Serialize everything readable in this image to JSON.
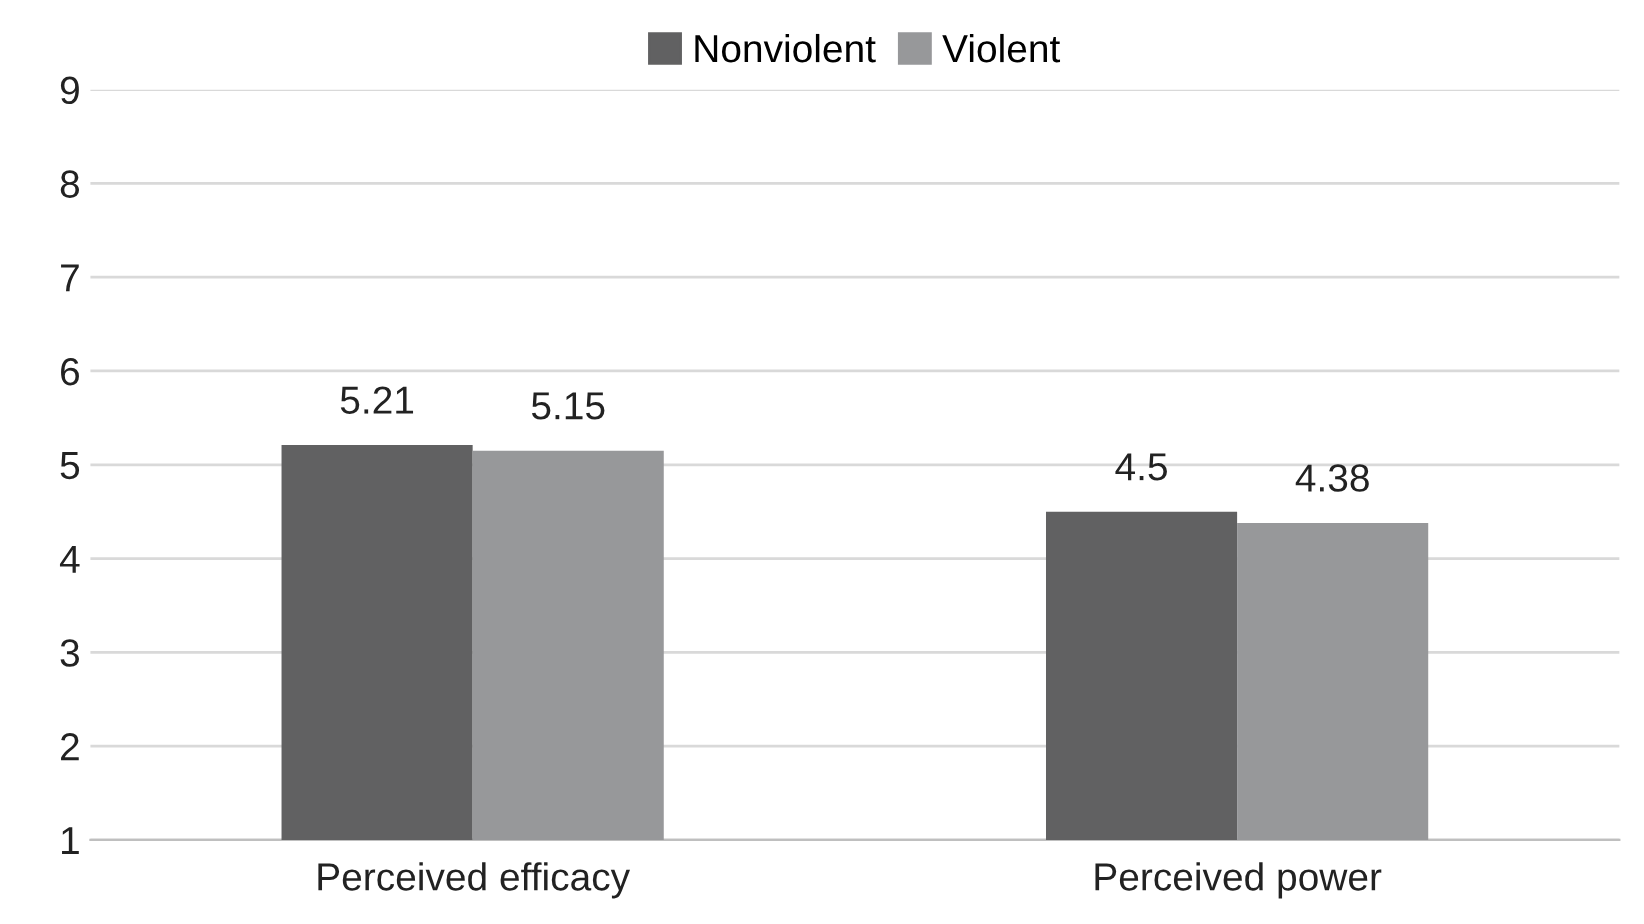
{
  "chart_data": {
    "type": "bar",
    "categories": [
      "Perceived efficacy",
      "Perceived power"
    ],
    "series": [
      {
        "name": "Nonviolent",
        "color": "#616162",
        "values": [
          5.21,
          4.5
        ]
      },
      {
        "name": "Violent",
        "color": "#97989a",
        "values": [
          5.15,
          4.38
        ]
      }
    ],
    "ylim": [
      1,
      9
    ],
    "yticks": [
      1,
      2,
      3,
      4,
      5,
      6,
      7,
      8,
      9
    ],
    "grid": "y",
    "legend": "top",
    "data_labels": true
  }
}
